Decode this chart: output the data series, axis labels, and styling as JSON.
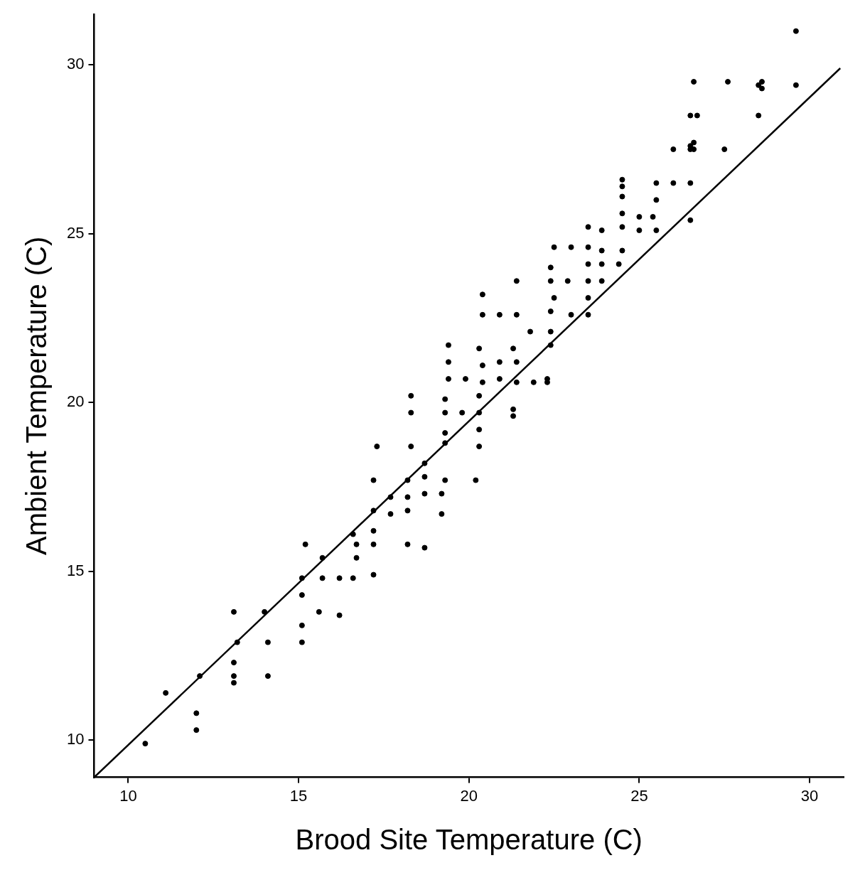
{
  "chart_data": {
    "type": "scatter",
    "xlabel": "Brood Site Temperature (C)",
    "ylabel": "Ambient Temperature (C)",
    "xlim": [
      9,
      31
    ],
    "ylim": [
      8.9,
      31.5
    ],
    "xticks": [
      10,
      15,
      20,
      25,
      30
    ],
    "yticks": [
      10,
      15,
      20,
      25,
      30
    ],
    "grid": false,
    "legend": false,
    "series": [
      {
        "type": "scatter",
        "color": "#000000",
        "marker": "circle",
        "x": [
          10.5,
          11.1,
          12.0,
          12.0,
          12.1,
          13.1,
          13.1,
          13.1,
          13.1,
          13.2,
          14.0,
          14.1,
          14.1,
          15.1,
          15.1,
          15.1,
          15.1,
          15.7,
          16.2,
          15.6,
          16.2,
          15.7,
          15.2,
          16.6,
          16.7,
          16.7,
          16.6,
          17.2,
          17.2,
          17.2,
          17.2,
          17.2,
          17.3,
          17.7,
          17.7,
          18.2,
          18.2,
          18.2,
          18.2,
          18.7,
          18.3,
          18.3,
          18.7,
          18.7,
          18.7,
          19.3,
          19.2,
          19.2,
          19.3,
          19.3,
          19.3,
          19.8,
          20.3,
          20.3,
          20.3,
          20.2,
          20.4,
          20.4,
          20.9,
          21.4,
          21.4,
          22.4,
          22.9,
          23.5,
          23.9,
          22.5,
          22.4,
          23.0,
          23.5,
          21.8,
          22.4,
          23.5,
          22.4,
          19.4,
          20.3,
          21.3,
          19.4,
          20.4,
          20.9,
          21.4,
          19.4,
          19.9,
          20.4,
          20.9,
          21.4,
          21.9,
          22.3,
          22.3,
          18.3,
          19.3,
          20.3,
          21.3,
          21.3,
          24.5,
          24.5,
          25.5,
          26.0,
          26.5,
          24.5,
          25.5,
          24.5,
          25.0,
          25.4,
          23.5,
          23.9,
          24.5,
          25.0,
          25.5,
          26.5,
          22.5,
          23.0,
          23.5,
          23.9,
          24.5,
          22.4,
          23.5,
          23.9,
          24.4,
          29.6,
          26.6,
          27.6,
          28.6,
          28.5,
          28.6,
          29.6,
          26.5,
          26.7,
          28.5,
          26.0,
          26.5,
          26.6,
          26.5,
          26.6,
          27.5
        ],
        "values": [
          9.9,
          11.4,
          10.8,
          10.3,
          11.9,
          13.8,
          12.3,
          11.9,
          11.7,
          12.9,
          13.8,
          12.9,
          11.9,
          14.8,
          14.3,
          13.4,
          12.9,
          14.8,
          14.8,
          13.8,
          13.7,
          15.4,
          15.8,
          16.1,
          15.8,
          15.4,
          14.8,
          14.9,
          15.8,
          16.2,
          16.8,
          17.7,
          18.7,
          16.7,
          17.2,
          17.2,
          16.8,
          17.7,
          15.8,
          15.7,
          18.7,
          19.7,
          17.3,
          17.8,
          18.2,
          17.7,
          17.3,
          16.7,
          18.8,
          19.1,
          19.7,
          19.7,
          19.7,
          19.2,
          18.7,
          17.7,
          23.2,
          22.6,
          22.6,
          22.6,
          23.6,
          23.6,
          23.6,
          23.6,
          23.6,
          23.1,
          22.7,
          22.6,
          23.1,
          22.1,
          22.1,
          22.6,
          21.7,
          21.7,
          21.6,
          21.6,
          21.2,
          21.1,
          21.2,
          21.2,
          20.7,
          20.7,
          20.6,
          20.7,
          20.6,
          20.6,
          20.7,
          20.6,
          20.2,
          20.1,
          20.2,
          19.8,
          19.6,
          26.6,
          26.4,
          26.5,
          26.5,
          26.5,
          26.1,
          26.0,
          25.6,
          25.5,
          25.5,
          25.2,
          25.1,
          25.2,
          25.1,
          25.1,
          25.4,
          24.6,
          24.6,
          24.6,
          24.5,
          24.5,
          24.0,
          24.1,
          24.1,
          24.1,
          31.0,
          29.5,
          29.5,
          29.5,
          29.4,
          29.3,
          29.4,
          28.5,
          28.5,
          28.5,
          27.5,
          27.6,
          27.7,
          27.5,
          27.5,
          27.5
        ]
      },
      {
        "type": "line",
        "color": "#000000",
        "marker": "none",
        "line_style": "solid",
        "x": [
          9.0,
          30.9
        ],
        "values": [
          8.9,
          29.9
        ]
      }
    ]
  }
}
